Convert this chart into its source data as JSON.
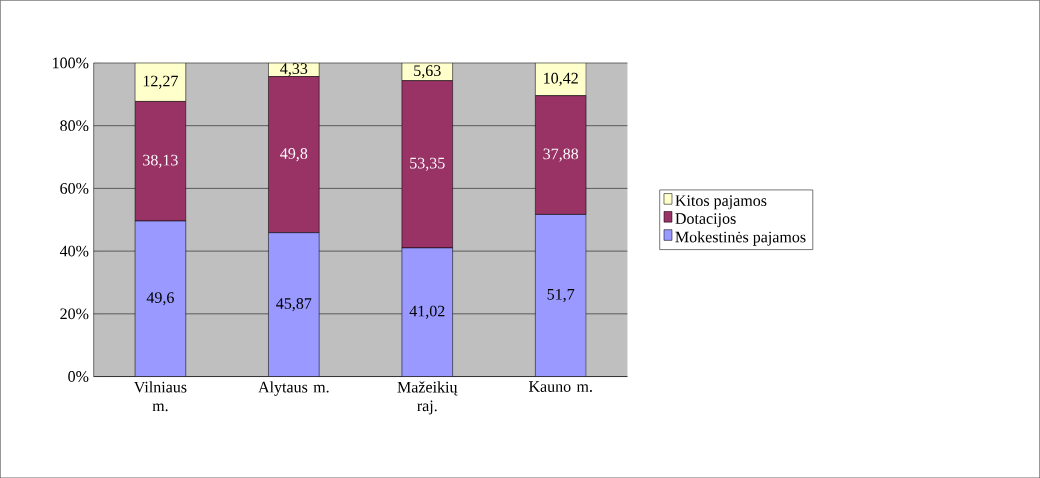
{
  "chart_data": {
    "type": "bar",
    "stacked": true,
    "categories": [
      "Vilniaus m.",
      "Alytaus m.",
      "Mažeikių raj.",
      "Kauno m."
    ],
    "series": [
      {
        "name": "Mokestinės pajamos",
        "color": "#9999ff",
        "values": [
          49.6,
          45.87,
          41.02,
          51.7
        ],
        "value_labels": [
          "49,6",
          "45,87",
          "41,02",
          "51,7"
        ]
      },
      {
        "name": "Dotacijos",
        "color": "#993366",
        "values": [
          38.13,
          49.8,
          53.35,
          37.88
        ],
        "value_labels": [
          "38,13",
          "49,8",
          "53,35",
          "37,88"
        ]
      },
      {
        "name": "Kitos pajamos",
        "color": "#ffffcc",
        "values": [
          12.27,
          4.33,
          5.63,
          10.42
        ],
        "value_labels": [
          "12,27",
          "4,33",
          "5,63",
          "10,42"
        ]
      }
    ],
    "ylim": [
      0,
      100
    ],
    "yticks": [
      {
        "value": 0,
        "label": "0%"
      },
      {
        "value": 20,
        "label": "20%"
      },
      {
        "value": 40,
        "label": "40%"
      },
      {
        "value": 60,
        "label": "60%"
      },
      {
        "value": 80,
        "label": "80%"
      },
      {
        "value": 100,
        "label": "100%"
      }
    ],
    "grid": "y",
    "legend": "right"
  }
}
